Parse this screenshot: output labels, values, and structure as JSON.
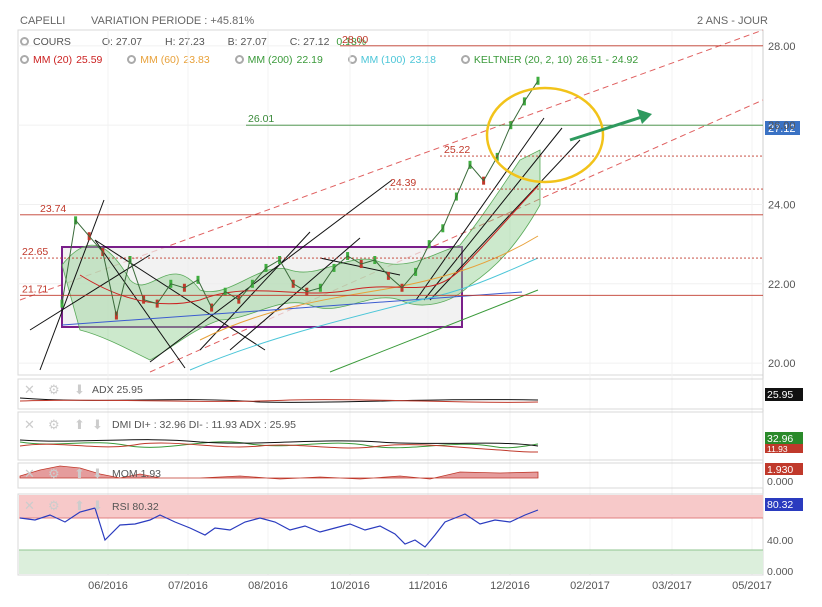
{
  "header": {
    "symbol": "CAPELLI",
    "variation": "VARIATION PERIODE : +45.81%",
    "period": "2 ANS - JOUR"
  },
  "legend_cours": {
    "label": "COURS",
    "o": "O: 27.07",
    "h": "H: 27.23",
    "b": "B: 27.07",
    "c": "C: 27.12",
    "pct": "0.18%"
  },
  "legend_ma": [
    {
      "label": "MM (20)",
      "value": "25.59",
      "color": "#cc2222"
    },
    {
      "label": "MM (60)",
      "value": "23.83",
      "color": "#e8a13a"
    },
    {
      "label": "MM (200)",
      "value": "22.19",
      "color": "#3a9a3a"
    },
    {
      "label": "MM (100)",
      "value": "23.18",
      "color": "#4cc6d8"
    },
    {
      "label": "KELTNER (20, 2, 10)",
      "value": "26.51 - 24.92",
      "color": "#3a9a3a"
    }
  ],
  "indicators": {
    "adx": {
      "label": "ADX 25.95",
      "value": "25.95"
    },
    "dmi": {
      "label": "DMI DI+ : 32.96 DI- : 11.93 ADX : 25.95",
      "di_plus": "32.96",
      "di_minus": "11.93"
    },
    "mom": {
      "label": "MOM 1.93",
      "value": "1.930",
      "zero": "0.000"
    },
    "rsi": {
      "label": "RSI 80.32",
      "value": "80.32",
      "ticks": [
        "40.00",
        "0.000"
      ]
    }
  },
  "chart_data": {
    "type": "line",
    "title": "CAPELLI",
    "ylim": [
      19.7,
      28.4
    ],
    "y_ticks": [
      "20.00",
      "22.00",
      "24.00",
      "26.00",
      "28.00"
    ],
    "x_ticks": [
      "06/2016",
      "07/2016",
      "08/2016",
      "10/2016",
      "11/2016",
      "12/2016",
      "02/2017",
      "03/2017",
      "05/2017"
    ],
    "last_price": "27.12",
    "levels": [
      {
        "label": "28.00",
        "value": 28.0,
        "color": "#c0392b"
      },
      {
        "label": "26.01",
        "value": 26.0,
        "color": "#3a8a3a"
      },
      {
        "label": "25.22",
        "value": 25.22,
        "color": "#c0392b"
      },
      {
        "label": "24.39",
        "value": 24.39,
        "color": "#c0392b"
      },
      {
        "label": "23.74",
        "value": 23.74,
        "color": "#c0392b"
      },
      {
        "label": "22.65",
        "value": 22.65,
        "color": "#c0392b"
      },
      {
        "label": "21.71",
        "value": 21.71,
        "color": "#c0392b"
      }
    ],
    "series": [
      {
        "values": [
          21.5,
          23.6,
          23.2,
          22.8,
          21.2,
          22.6,
          21.6,
          21.5,
          22.0,
          21.9,
          22.1,
          21.4,
          21.8,
          21.6,
          22.0,
          22.4,
          22.6,
          22.0,
          21.8,
          21.9,
          22.4,
          22.7,
          22.5,
          22.6,
          22.2,
          21.9,
          22.3,
          23.0,
          23.4,
          24.2,
          25.0,
          24.6,
          25.2,
          26.0,
          26.6,
          27.12
        ]
      }
    ]
  }
}
